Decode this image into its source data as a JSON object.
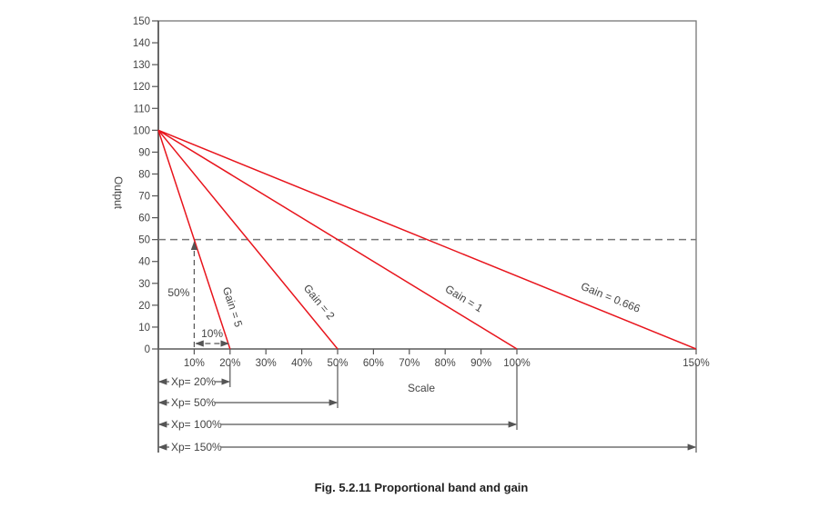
{
  "chart_data": {
    "type": "line",
    "title": "",
    "caption": "Fig. 5.2.11 Proportional band and gain",
    "xlabel": "Scale",
    "ylabel": "Output",
    "xlim": [
      0,
      150
    ],
    "ylim": [
      0,
      150
    ],
    "x_ticks": [
      "10%",
      "20%",
      "30%",
      "40%",
      "50%",
      "60%",
      "70%",
      "80%",
      "90%",
      "100%",
      "150%"
    ],
    "x_tick_values": [
      10,
      20,
      30,
      40,
      50,
      60,
      70,
      80,
      90,
      100,
      150
    ],
    "y_ticks": [
      0,
      10,
      20,
      30,
      40,
      50,
      60,
      70,
      80,
      90,
      100,
      110,
      120,
      130,
      140,
      150
    ],
    "grid": false,
    "reference_line": {
      "y": 50,
      "style": "dashed"
    },
    "series": [
      {
        "name": "Gain = 5",
        "x": [
          0,
          20
        ],
        "y": [
          100,
          0
        ]
      },
      {
        "name": "Gain = 2",
        "x": [
          0,
          50
        ],
        "y": [
          100,
          0
        ]
      },
      {
        "name": "Gain = 1",
        "x": [
          0,
          100
        ],
        "y": [
          100,
          0
        ]
      },
      {
        "name": "Gain = 0.666",
        "x": [
          0,
          150
        ],
        "y": [
          100,
          0
        ]
      }
    ],
    "annotations": {
      "vertical_dim": "50%",
      "horizontal_dim": "10%",
      "proportional_bands": [
        "Xp= 20%",
        "Xp= 50%",
        "Xp= 100%",
        "Xp= 150%"
      ],
      "proportional_band_values": [
        20,
        50,
        100,
        150
      ]
    },
    "colors": {
      "series": "#e8141c",
      "axis": "#555555",
      "dashed": "#777777"
    }
  }
}
